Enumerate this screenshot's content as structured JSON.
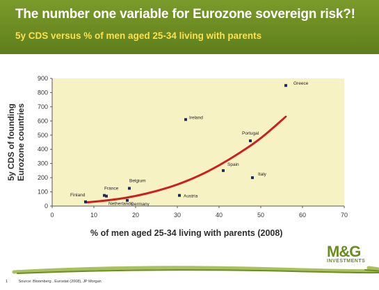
{
  "header": {
    "title": "The number one variable for Eurozone sovereign risk?!",
    "subtitle": "5y CDS versus % of men aged 25-34 living with parents"
  },
  "footer": {
    "page_number": "1",
    "source": "Source: Bloomberg , Eurostat (2008), JP Morgan"
  },
  "logo": {
    "text": "M&G",
    "sub_text": "INVESTMENTS"
  },
  "colors": {
    "header_bg": "#6f8f24",
    "subtitle": "#ffe04a",
    "plot_bg": "#f7f2c4",
    "trend_line": "#cc1f1f",
    "point": "#1f2a5c",
    "brand": "#6b8d1f"
  },
  "chart_data": {
    "type": "scatter",
    "title": "The number one variable for Eurozone sovereign risk?!",
    "subtitle": "5y CDS versus % of men aged 25-34 living with parents",
    "xlabel": "% of men aged 25-34 living with parents (2008)",
    "ylabel_lines": [
      "5y CDS of founding",
      "Eurozone countries"
    ],
    "xlim": [
      0,
      70
    ],
    "ylim": [
      0,
      900
    ],
    "x_ticks": [
      "0",
      "10",
      "20",
      "30",
      "40",
      "50",
      "60",
      "70"
    ],
    "y_ticks": [
      "0",
      "100",
      "200",
      "300",
      "400",
      "500",
      "600",
      "700",
      "800",
      "900"
    ],
    "grid": false,
    "points": [
      {
        "label": "Finland",
        "x": 8,
        "y": 30
      },
      {
        "label": "Netherlands",
        "x": 12.5,
        "y": 75
      },
      {
        "label": "France",
        "x": 13,
        "y": 70
      },
      {
        "label": "Germany",
        "x": 18,
        "y": 40
      },
      {
        "label": "Belgium",
        "x": 18.5,
        "y": 125
      },
      {
        "label": "Austria",
        "x": 30.5,
        "y": 75
      },
      {
        "label": "Ireland",
        "x": 32,
        "y": 610
      },
      {
        "label": "Spain",
        "x": 41,
        "y": 250
      },
      {
        "label": "Portugal",
        "x": 47.5,
        "y": 460
      },
      {
        "label": "Italy",
        "x": 48,
        "y": 200
      },
      {
        "label": "Greece",
        "x": 56,
        "y": 850
      }
    ],
    "trend": {
      "type": "exponential",
      "points": [
        {
          "x": 8,
          "y": 25
        },
        {
          "x": 15,
          "y": 45
        },
        {
          "x": 20,
          "y": 70
        },
        {
          "x": 25,
          "y": 105
        },
        {
          "x": 30,
          "y": 150
        },
        {
          "x": 35,
          "y": 210
        },
        {
          "x": 40,
          "y": 285
        },
        {
          "x": 45,
          "y": 375
        },
        {
          "x": 50,
          "y": 475
        },
        {
          "x": 56,
          "y": 630
        }
      ]
    }
  }
}
